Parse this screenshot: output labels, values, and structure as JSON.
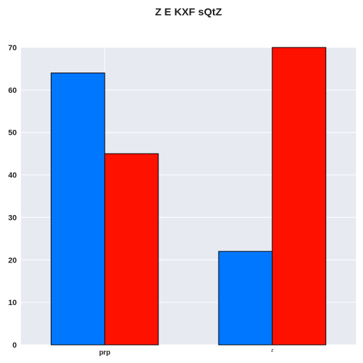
{
  "chart_data": {
    "type": "bar",
    "title": "Z E KXF sQtZ",
    "xlabel": "",
    "ylabel": "",
    "categories": [
      "prp",
      "z"
    ],
    "series": [
      {
        "values": [
          64,
          22
        ],
        "color": "#0077ff"
      },
      {
        "values": [
          45,
          70
        ],
        "color": "#ff1100"
      }
    ],
    "ylim": [
      0,
      70
    ],
    "yticks": [
      0,
      10,
      20,
      30,
      40,
      50,
      60,
      70
    ],
    "grid": true,
    "legend": "none",
    "plot_background": "#e8eaf2",
    "grid_color": "#ffffff",
    "bar_edge_color": "#000000"
  }
}
